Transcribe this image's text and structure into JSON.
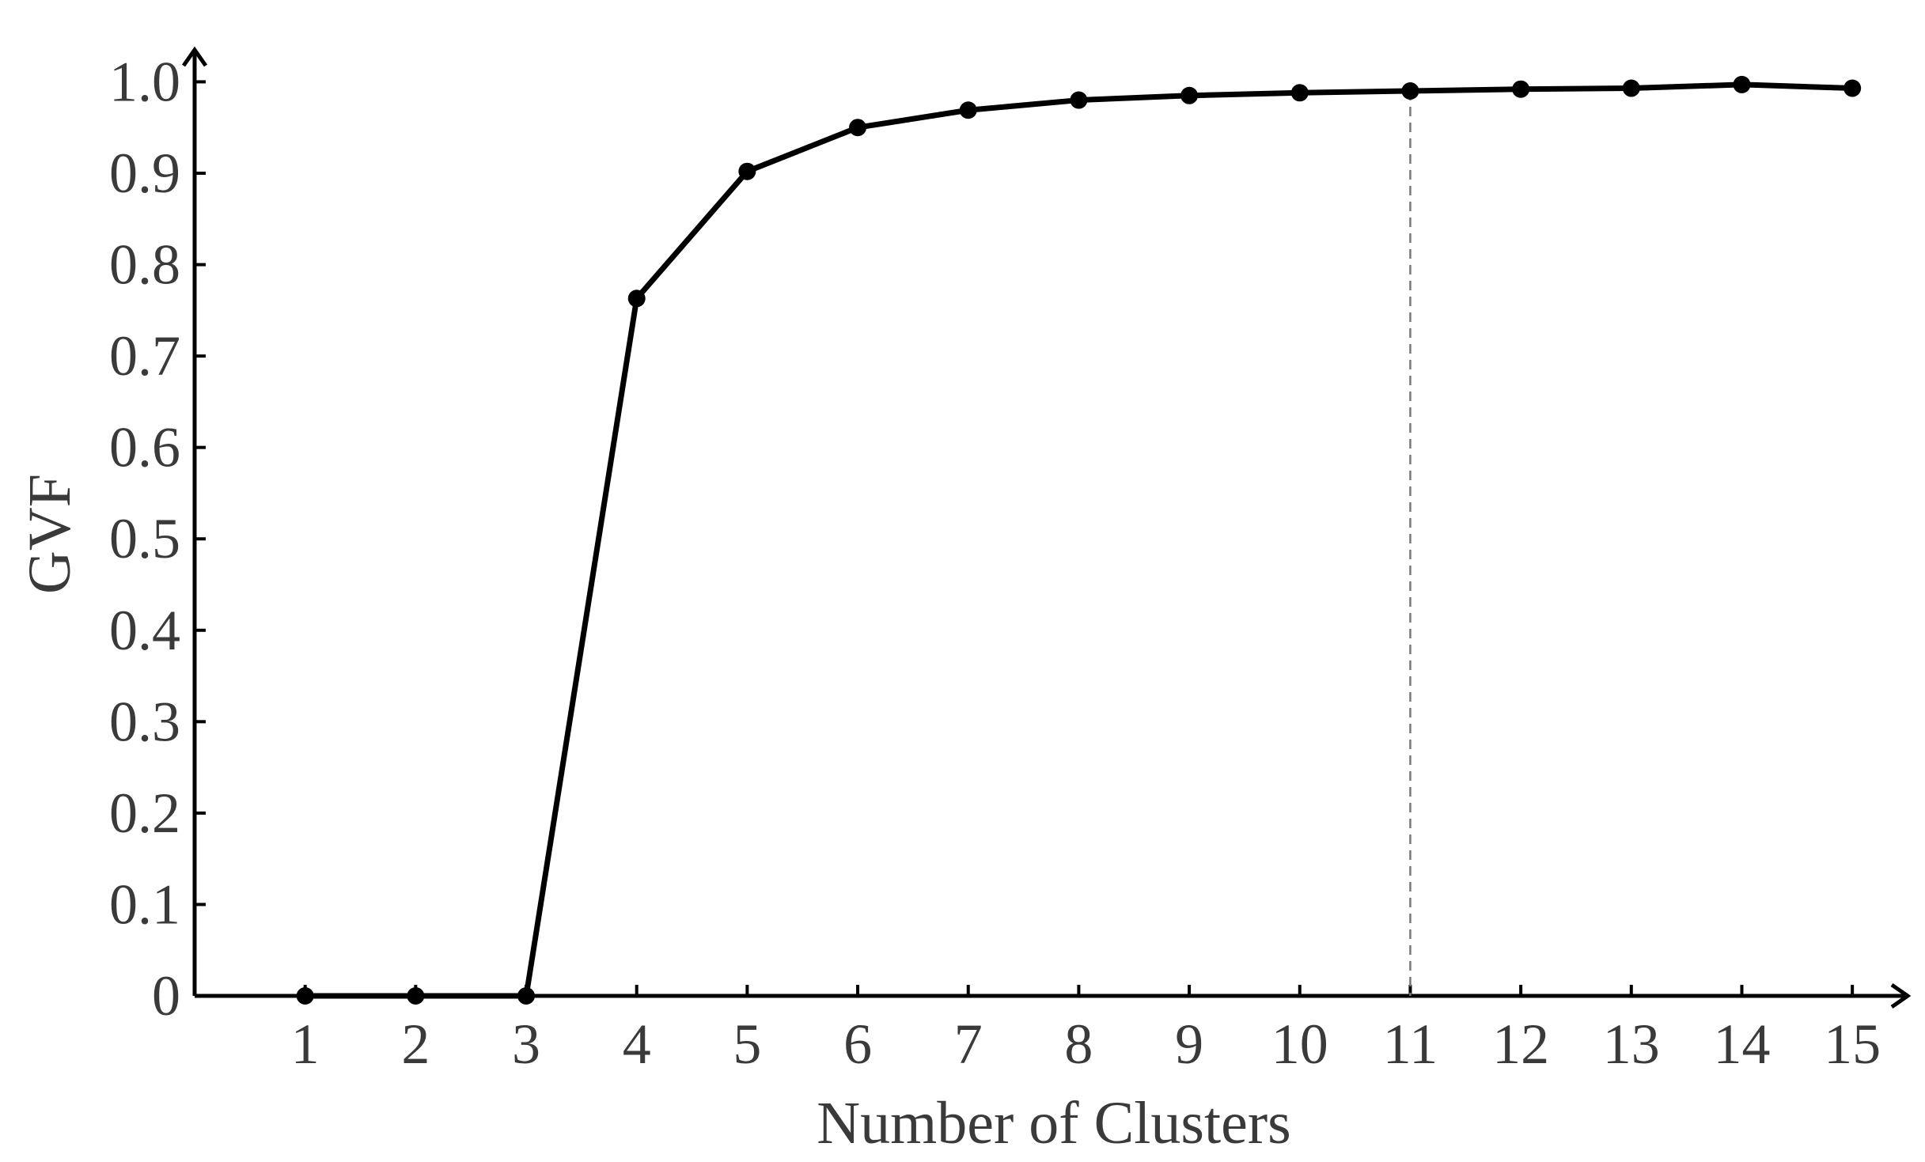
{
  "chart_data": {
    "type": "line",
    "x_label": "Number of Clusters",
    "y_label": "GVF",
    "x": [
      1,
      2,
      3,
      4,
      5,
      6,
      7,
      8,
      9,
      10,
      11,
      12,
      13,
      14,
      15
    ],
    "series": [
      {
        "color": "#000000",
        "values": [
          0,
          0,
          0,
          0.763,
          0.902,
          0.95,
          0.969,
          0.98,
          0.985,
          0.988,
          0.99,
          0.992,
          0.993,
          0.997,
          0.993
        ]
      }
    ],
    "xlim": [
      0,
      15.5
    ],
    "ylim": [
      0,
      1.035
    ],
    "xticks": [
      1,
      2,
      3,
      4,
      5,
      6,
      7,
      8,
      9,
      10,
      11,
      12,
      13,
      14,
      15
    ],
    "yticks": [
      0,
      0.1,
      0.2,
      0.3,
      0.4,
      0.5,
      0.6,
      0.7,
      0.8,
      0.9,
      {
        "value": 1,
        "label": "1.0"
      }
    ],
    "reference_x": 11,
    "markers": true
  }
}
